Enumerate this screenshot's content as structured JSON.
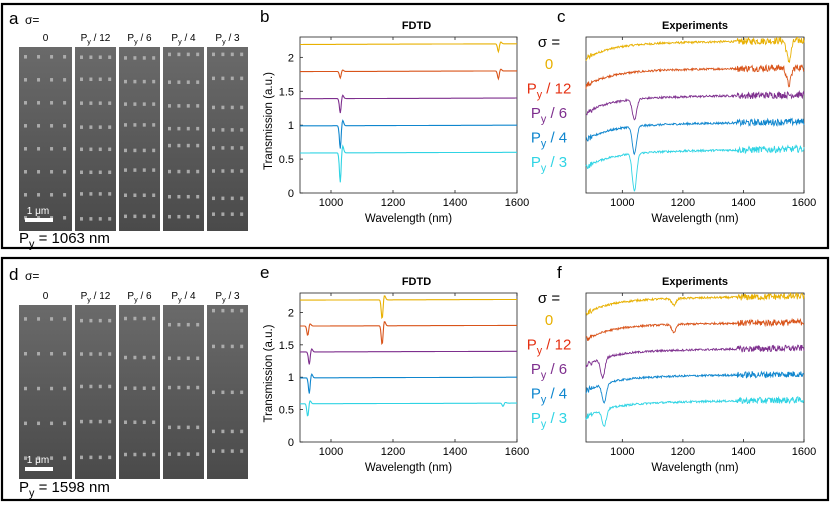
{
  "panels": [
    {
      "sem_label": "a",
      "plot1_label": "b",
      "plot2_label": "c",
      "sigma_prefix": "σ=",
      "sem_columns": [
        {
          "main": "0",
          "sub": "",
          "tail": ""
        },
        {
          "main": "P",
          "sub": "y",
          "tail": " / 12"
        },
        {
          "main": "P",
          "sub": "y",
          "tail": " / 6"
        },
        {
          "main": "P",
          "sub": "y",
          "tail": " / 4"
        },
        {
          "main": "P",
          "sub": "y",
          "tail": " / 3"
        }
      ],
      "scale_bar": "1 μm",
      "period": {
        "main": "P",
        "sub": "y",
        "tail": " = 1063 nm"
      },
      "fdtd_title": "FDTD",
      "exp_title": "Experiments",
      "legend_title": "σ =",
      "legend": [
        {
          "main": "0",
          "sub": "",
          "tail": "",
          "color": "#E8B000"
        },
        {
          "main": "P",
          "sub": "y",
          "tail": " / 12",
          "color": "#E53012"
        },
        {
          "main": "P",
          "sub": "y",
          "tail": " / 6",
          "color": "#7E2F8E"
        },
        {
          "main": "P",
          "sub": "y",
          "tail": " / 4",
          "color": "#0F86CE"
        },
        {
          "main": "P",
          "sub": "y",
          "tail": " / 3",
          "color": "#30D4E4"
        }
      ]
    },
    {
      "sem_label": "d",
      "plot1_label": "e",
      "plot2_label": "f",
      "sigma_prefix": "σ=",
      "sem_columns": [
        {
          "main": "0",
          "sub": "",
          "tail": ""
        },
        {
          "main": "P",
          "sub": "y",
          "tail": " / 12"
        },
        {
          "main": "P",
          "sub": "y",
          "tail": " / 6"
        },
        {
          "main": "P",
          "sub": "y",
          "tail": " / 4"
        },
        {
          "main": "P",
          "sub": "y",
          "tail": " / 3"
        }
      ],
      "scale_bar": "1 μm",
      "period": {
        "main": "P",
        "sub": "y",
        "tail": " = 1598 nm"
      },
      "fdtd_title": "FDTD",
      "exp_title": "Experiments",
      "legend_title": "σ =",
      "legend": [
        {
          "main": "0",
          "sub": "",
          "tail": "",
          "color": "#E8B000"
        },
        {
          "main": "P",
          "sub": "y",
          "tail": " / 12",
          "color": "#E53012"
        },
        {
          "main": "P",
          "sub": "y",
          "tail": " / 6",
          "color": "#7E2F8E"
        },
        {
          "main": "P",
          "sub": "y",
          "tail": " / 4",
          "color": "#0F86CE"
        },
        {
          "main": "P",
          "sub": "y",
          "tail": " / 3",
          "color": "#30D4E4"
        }
      ]
    }
  ],
  "chart_data": [
    {
      "type": "line",
      "title": "FDTD",
      "xlabel": "Wavelength (nm)",
      "ylabel": "Transmission (a.u.)",
      "xlim": [
        900,
        1600
      ],
      "ylim": [
        0,
        2.3
      ],
      "xticks": [
        1000,
        1200,
        1400,
        1600
      ],
      "xtick_labels": [
        "1000",
        "1200",
        "1400",
        "1600"
      ],
      "yticks": [
        0,
        0.5,
        1,
        1.5,
        2
      ],
      "ytick_labels": [
        "0",
        "0.5",
        "1",
        "1.5",
        "2"
      ],
      "series": [
        {
          "name": "0",
          "color": "#E8B000",
          "offset": 2.2,
          "dips": [
            {
              "x": 1540,
              "depth": 0.12
            }
          ]
        },
        {
          "name": "Py/12",
          "color": "#D9541A",
          "offset": 1.8,
          "dips": [
            {
              "x": 1030,
              "depth": 0.1
            },
            {
              "x": 1540,
              "depth": 0.12
            }
          ]
        },
        {
          "name": "Py/6",
          "color": "#7E2F8E",
          "offset": 1.4,
          "dips": [
            {
              "x": 1030,
              "depth": 0.22
            }
          ]
        },
        {
          "name": "Py/4",
          "color": "#0F86CE",
          "offset": 1.0,
          "dips": [
            {
              "x": 1030,
              "depth": 0.35
            }
          ]
        },
        {
          "name": "Py/3",
          "color": "#30D4E4",
          "offset": 0.6,
          "dips": [
            {
              "x": 1030,
              "depth": 0.45
            }
          ]
        }
      ]
    },
    {
      "type": "line",
      "title": "Experiments",
      "xlabel": "Wavelength (nm)",
      "ylabel": "",
      "xlim": [
        880,
        1600
      ],
      "xticks": [
        1000,
        1200,
        1400,
        1600
      ],
      "xtick_labels": [
        "1000",
        "1200",
        "1400",
        "1600"
      ],
      "series": [
        {
          "name": "0",
          "color": "#E8B000",
          "offset": 2.2,
          "dips": [
            {
              "x": 1550,
              "depth": 0.3
            }
          ]
        },
        {
          "name": "Py/12",
          "color": "#D9541A",
          "offset": 1.8,
          "dips": [
            {
              "x": 1550,
              "depth": 0.25
            }
          ]
        },
        {
          "name": "Py/6",
          "color": "#7E2F8E",
          "offset": 1.4,
          "dips": [
            {
              "x": 1040,
              "depth": 0.3
            }
          ]
        },
        {
          "name": "Py/4",
          "color": "#0F86CE",
          "offset": 1.0,
          "dips": [
            {
              "x": 1040,
              "depth": 0.4
            }
          ]
        },
        {
          "name": "Py/3",
          "color": "#30D4E4",
          "offset": 0.6,
          "dips": [
            {
              "x": 1040,
              "depth": 0.55
            }
          ]
        }
      ]
    },
    {
      "type": "line",
      "title": "FDTD",
      "xlabel": "Wavelength (nm)",
      "ylabel": "Transmission (a.u.)",
      "xlim": [
        900,
        1600
      ],
      "ylim": [
        0,
        2.3
      ],
      "xticks": [
        1000,
        1200,
        1400,
        1600
      ],
      "xtick_labels": [
        "1000",
        "1200",
        "1400",
        "1600"
      ],
      "yticks": [
        0,
        0.5,
        1,
        1.5,
        2
      ],
      "ytick_labels": [
        "0",
        "0.5",
        "1",
        "1.5",
        "2"
      ],
      "series": [
        {
          "name": "0",
          "color": "#E8B000",
          "offset": 2.2,
          "dips": [
            {
              "x": 1165,
              "depth": 0.3
            }
          ]
        },
        {
          "name": "Py/12",
          "color": "#D9541A",
          "offset": 1.8,
          "dips": [
            {
              "x": 925,
              "depth": 0.15
            },
            {
              "x": 1165,
              "depth": 0.3
            }
          ]
        },
        {
          "name": "Py/6",
          "color": "#7E2F8E",
          "offset": 1.4,
          "dips": [
            {
              "x": 930,
              "depth": 0.2
            }
          ]
        },
        {
          "name": "Py/4",
          "color": "#0F86CE",
          "offset": 1.0,
          "dips": [
            {
              "x": 930,
              "depth": 0.25
            }
          ]
        },
        {
          "name": "Py/3",
          "color": "#30D4E4",
          "offset": 0.6,
          "dips": [
            {
              "x": 925,
              "depth": 0.2
            },
            {
              "x": 1555,
              "depth": 0.05
            }
          ]
        }
      ]
    },
    {
      "type": "line",
      "title": "Experiments",
      "xlabel": "Wavelength (nm)",
      "ylabel": "",
      "xlim": [
        880,
        1600
      ],
      "xticks": [
        1000,
        1200,
        1400,
        1600
      ],
      "xtick_labels": [
        "1000",
        "1200",
        "1400",
        "1600"
      ],
      "series": [
        {
          "name": "0",
          "color": "#E8B000",
          "offset": 2.2,
          "dips": [
            {
              "x": 1170,
              "depth": 0.1
            }
          ]
        },
        {
          "name": "Py/12",
          "color": "#D9541A",
          "offset": 1.8,
          "dips": [
            {
              "x": 1170,
              "depth": 0.12
            }
          ]
        },
        {
          "name": "Py/6",
          "color": "#7E2F8E",
          "offset": 1.4,
          "dips": [
            {
              "x": 935,
              "depth": 0.3
            }
          ]
        },
        {
          "name": "Py/4",
          "color": "#0F86CE",
          "offset": 1.0,
          "dips": [
            {
              "x": 940,
              "depth": 0.3
            }
          ]
        },
        {
          "name": "Py/3",
          "color": "#30D4E4",
          "offset": 0.6,
          "dips": [
            {
              "x": 940,
              "depth": 0.25
            }
          ]
        }
      ]
    }
  ]
}
